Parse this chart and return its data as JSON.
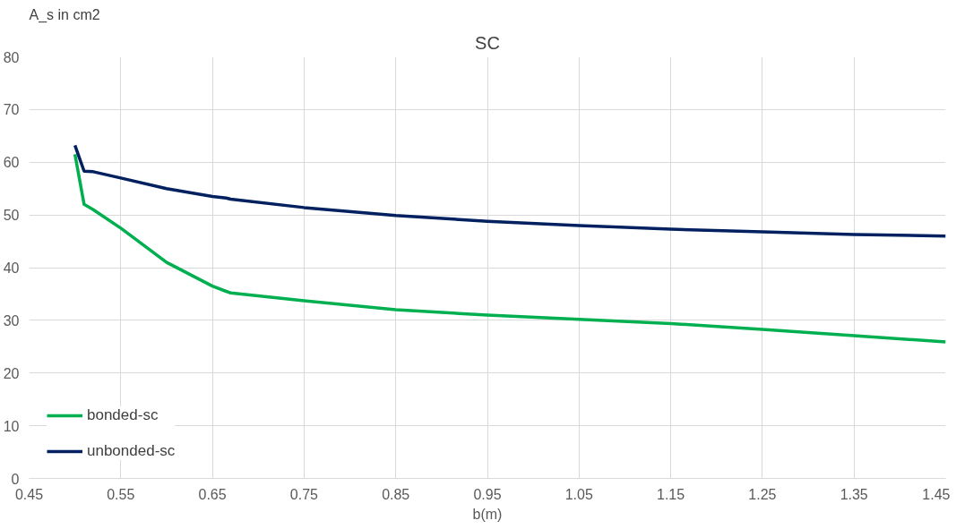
{
  "chart_data": {
    "type": "line",
    "title": "SC",
    "xlabel": "b(m)",
    "ylabel": "A_s in cm2",
    "xlim": [
      0.45,
      1.45
    ],
    "xticks": [
      {
        "value": 0.45,
        "label": "0.45"
      },
      {
        "value": 0.55,
        "label": "0.55"
      },
      {
        "value": 0.65,
        "label": "0.65"
      },
      {
        "value": 0.75,
        "label": "0.75"
      },
      {
        "value": 0.85,
        "label": "0.85"
      },
      {
        "value": 0.95,
        "label": "0.95"
      },
      {
        "value": 1.05,
        "label": "1.05"
      },
      {
        "value": 1.15,
        "label": "1.15"
      },
      {
        "value": 1.25,
        "label": "1.25"
      },
      {
        "value": 1.35,
        "label": "1.35"
      },
      {
        "value": 1.45,
        "label": "1.45"
      }
    ],
    "ylim": [
      0,
      80
    ],
    "yticks": [
      0,
      10,
      20,
      30,
      40,
      50,
      60,
      70,
      80
    ],
    "grid": true,
    "legend": "bottom left",
    "marker": "none",
    "line_style": "solid",
    "x": [
      0.5,
      0.51,
      0.52,
      0.55,
      0.6,
      0.65,
      0.665,
      0.67,
      0.75,
      0.85,
      0.95,
      1.05,
      1.15,
      1.25,
      1.35,
      1.45
    ],
    "series": [
      {
        "name": "bonded-sc",
        "color": "#00b050",
        "values": [
          61.5,
          52,
          51,
          47.5,
          41,
          36.5,
          35.5,
          35.2,
          33.7,
          32,
          31,
          30.2,
          29.4,
          28.3,
          27.1,
          25.9
        ]
      },
      {
        "name": "unbonded-sc",
        "color": "#002060",
        "values": [
          63.2,
          58.3,
          58.2,
          57,
          55,
          53.5,
          53.2,
          53,
          51.4,
          49.9,
          48.8,
          48,
          47.3,
          46.8,
          46.3,
          46
        ]
      }
    ]
  }
}
